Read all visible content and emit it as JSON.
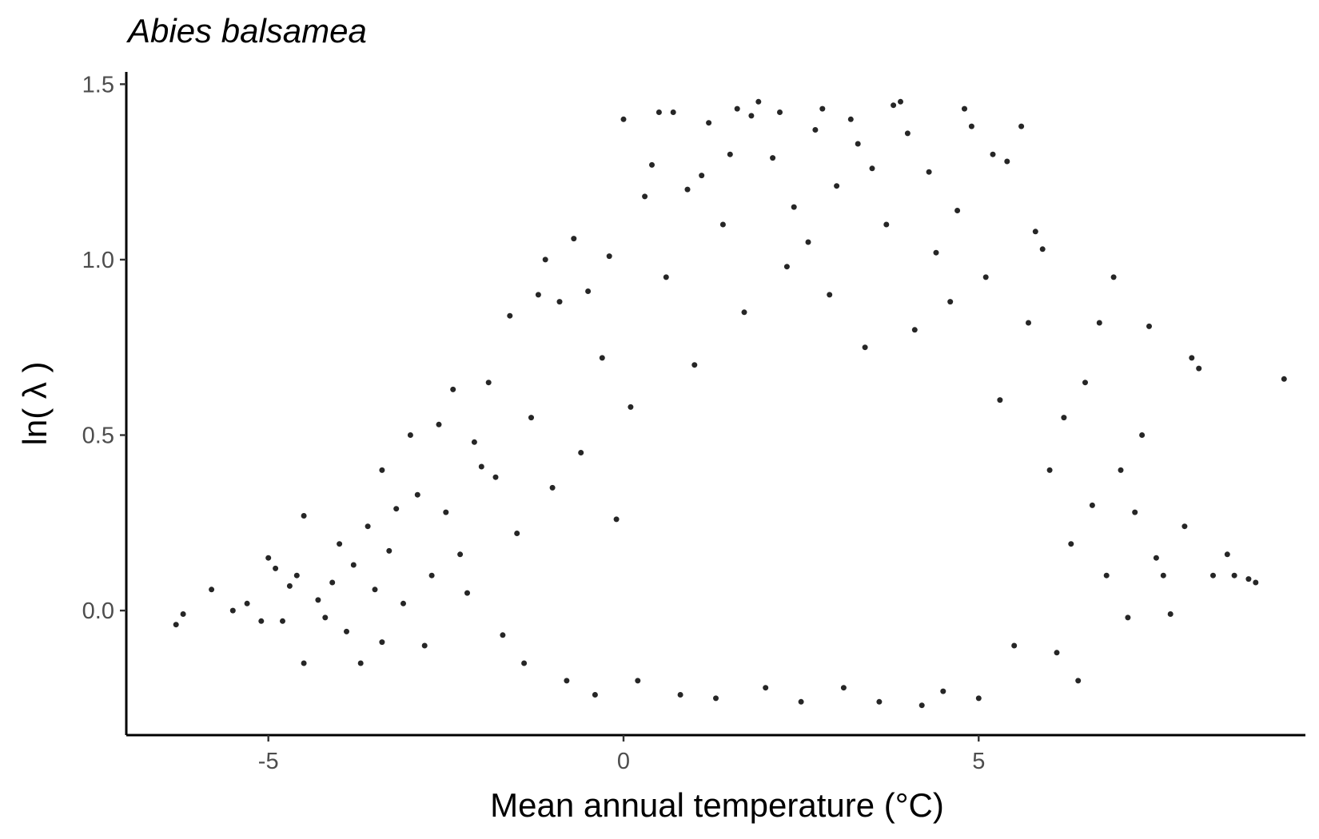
{
  "chart_data": {
    "type": "scatter",
    "title": "Abies balsamea",
    "xlabel": "Mean annual temperature (°C)",
    "ylabel": "ln( λ )",
    "xlim": [
      -7.0,
      9.6
    ],
    "ylim": [
      -0.355,
      1.535
    ],
    "x_ticks": [
      -5,
      0,
      5
    ],
    "x_tick_labels": [
      "-5",
      "0",
      "5"
    ],
    "y_ticks": [
      0.0,
      0.5,
      1.0,
      1.5
    ],
    "y_tick_labels": [
      "0.0",
      "0.5",
      "1.0",
      "1.5"
    ],
    "grid": false,
    "legend": "none",
    "point_color": "#000000",
    "points": [
      [
        -6.3,
        -0.04
      ],
      [
        -6.2,
        -0.01
      ],
      [
        -5.8,
        0.06
      ],
      [
        -5.5,
        0.0
      ],
      [
        -5.3,
        0.02
      ],
      [
        -5.1,
        -0.03
      ],
      [
        -5.0,
        0.15
      ],
      [
        -4.9,
        0.12
      ],
      [
        -4.8,
        -0.03
      ],
      [
        -4.7,
        0.07
      ],
      [
        -4.6,
        0.1
      ],
      [
        -4.5,
        0.27
      ],
      [
        -4.5,
        -0.15
      ],
      [
        -4.3,
        0.03
      ],
      [
        -4.2,
        -0.02
      ],
      [
        -4.1,
        0.08
      ],
      [
        -4.0,
        0.19
      ],
      [
        -3.9,
        -0.06
      ],
      [
        -3.8,
        0.13
      ],
      [
        -3.7,
        -0.15
      ],
      [
        -3.6,
        0.24
      ],
      [
        -3.5,
        0.06
      ],
      [
        -3.4,
        0.4
      ],
      [
        -3.4,
        -0.09
      ],
      [
        -3.3,
        0.17
      ],
      [
        -3.2,
        0.29
      ],
      [
        -3.1,
        0.02
      ],
      [
        -3.0,
        0.5
      ],
      [
        -2.9,
        0.33
      ],
      [
        -2.8,
        -0.1
      ],
      [
        -2.7,
        0.1
      ],
      [
        -2.6,
        0.53
      ],
      [
        -2.5,
        0.28
      ],
      [
        -2.4,
        0.63
      ],
      [
        -2.3,
        0.16
      ],
      [
        -2.2,
        0.05
      ],
      [
        -2.1,
        0.48
      ],
      [
        -2.0,
        0.41
      ],
      [
        -1.9,
        0.65
      ],
      [
        -1.8,
        0.38
      ],
      [
        -1.7,
        -0.07
      ],
      [
        -1.6,
        0.84
      ],
      [
        -1.5,
        0.22
      ],
      [
        -1.4,
        -0.15
      ],
      [
        -1.3,
        0.55
      ],
      [
        -1.2,
        0.9
      ],
      [
        -1.1,
        1.0
      ],
      [
        -1.0,
        0.35
      ],
      [
        -0.9,
        0.88
      ],
      [
        -0.8,
        -0.2
      ],
      [
        -0.7,
        1.06
      ],
      [
        -0.6,
        0.45
      ],
      [
        -0.5,
        0.91
      ],
      [
        -0.4,
        -0.24
      ],
      [
        -0.3,
        0.72
      ],
      [
        -0.2,
        1.01
      ],
      [
        -0.1,
        0.26
      ],
      [
        0.0,
        1.4
      ],
      [
        0.1,
        0.58
      ],
      [
        0.2,
        -0.2
      ],
      [
        0.3,
        1.18
      ],
      [
        0.4,
        1.27
      ],
      [
        0.5,
        1.42
      ],
      [
        0.6,
        0.95
      ],
      [
        0.7,
        1.42
      ],
      [
        0.8,
        -0.24
      ],
      [
        0.9,
        1.2
      ],
      [
        1.0,
        0.7
      ],
      [
        1.1,
        1.24
      ],
      [
        1.2,
        1.39
      ],
      [
        1.3,
        -0.25
      ],
      [
        1.4,
        1.1
      ],
      [
        1.5,
        1.3
      ],
      [
        1.6,
        1.43
      ],
      [
        1.7,
        0.85
      ],
      [
        1.8,
        1.41
      ],
      [
        1.9,
        1.45
      ],
      [
        2.0,
        -0.22
      ],
      [
        2.1,
        1.29
      ],
      [
        2.2,
        1.42
      ],
      [
        2.3,
        0.98
      ],
      [
        2.4,
        1.15
      ],
      [
        2.5,
        -0.26
      ],
      [
        2.6,
        1.05
      ],
      [
        2.7,
        1.37
      ],
      [
        2.8,
        1.43
      ],
      [
        2.9,
        0.9
      ],
      [
        3.0,
        1.21
      ],
      [
        3.1,
        -0.22
      ],
      [
        3.2,
        1.4
      ],
      [
        3.3,
        1.33
      ],
      [
        3.4,
        0.75
      ],
      [
        3.5,
        1.26
      ],
      [
        3.6,
        -0.26
      ],
      [
        3.7,
        1.1
      ],
      [
        3.8,
        1.44
      ],
      [
        3.9,
        1.45
      ],
      [
        4.0,
        1.36
      ],
      [
        4.1,
        0.8
      ],
      [
        4.2,
        -0.27
      ],
      [
        4.3,
        1.25
      ],
      [
        4.4,
        1.02
      ],
      [
        4.5,
        -0.23
      ],
      [
        4.6,
        0.88
      ],
      [
        4.7,
        1.14
      ],
      [
        4.8,
        1.43
      ],
      [
        4.9,
        1.38
      ],
      [
        5.0,
        -0.25
      ],
      [
        5.1,
        0.95
      ],
      [
        5.2,
        1.3
      ],
      [
        5.3,
        0.6
      ],
      [
        5.4,
        1.28
      ],
      [
        5.5,
        -0.1
      ],
      [
        5.6,
        1.38
      ],
      [
        5.7,
        0.82
      ],
      [
        5.8,
        1.08
      ],
      [
        5.9,
        1.03
      ],
      [
        6.0,
        0.4
      ],
      [
        6.1,
        -0.12
      ],
      [
        6.2,
        0.55
      ],
      [
        6.3,
        0.19
      ],
      [
        6.4,
        -0.2
      ],
      [
        6.5,
        0.65
      ],
      [
        6.6,
        0.3
      ],
      [
        6.7,
        0.82
      ],
      [
        6.8,
        0.1
      ],
      [
        6.9,
        0.95
      ],
      [
        7.0,
        0.4
      ],
      [
        7.1,
        -0.02
      ],
      [
        7.2,
        0.28
      ],
      [
        7.3,
        0.5
      ],
      [
        7.4,
        0.81
      ],
      [
        7.5,
        0.15
      ],
      [
        7.6,
        0.1
      ],
      [
        7.7,
        -0.01
      ],
      [
        7.9,
        0.24
      ],
      [
        8.0,
        0.72
      ],
      [
        8.1,
        0.69
      ],
      [
        8.3,
        0.1
      ],
      [
        8.5,
        0.16
      ],
      [
        8.6,
        0.1
      ],
      [
        8.8,
        0.09
      ],
      [
        8.9,
        0.08
      ],
      [
        9.3,
        0.66
      ]
    ]
  }
}
